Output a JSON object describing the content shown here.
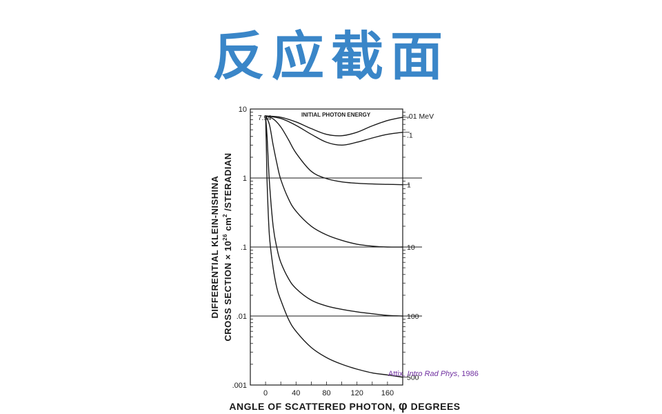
{
  "page": {
    "title": "反应截面",
    "citation": {
      "author": "Attix, ",
      "work": "Intro Rad Phys",
      "year": ", 1986"
    }
  },
  "chart_data": {
    "type": "line",
    "title": "",
    "inset_label": "INITIAL PHOTON ENERGY",
    "xlabel_prefix": "ANGLE OF SCATTERED PHOTON, ",
    "xlabel_symbol": "φ",
    "xlabel_suffix": " DEGREES",
    "ylabel_line1": "DIFFERENTIAL KLEIN-NISHINA",
    "ylabel_line2": "CROSS SECTION × 10",
    "ylabel_exp1": "26",
    "ylabel_unit": " cm",
    "ylabel_exp2": "2",
    "ylabel_tail": " /STERADIAN",
    "x_ticks": [
      "0",
      "40",
      "80",
      "120",
      "160"
    ],
    "y_ticks": [
      "10",
      "1",
      ".1",
      ".01",
      ".001"
    ],
    "xlim": [
      -20,
      180
    ],
    "ylim": [
      0.001,
      10
    ],
    "y_scale": "log",
    "grid": "horizontal at decades",
    "peak_label": "7.94",
    "series": [
      {
        "name": ".01 MeV",
        "x": [
          0,
          20,
          40,
          60,
          80,
          100,
          120,
          140,
          160,
          180
        ],
        "y": [
          7.94,
          7.6,
          6.5,
          5.2,
          4.3,
          4.1,
          4.6,
          5.7,
          6.8,
          7.6
        ]
      },
      {
        "name": ".1",
        "x": [
          0,
          20,
          40,
          60,
          80,
          100,
          120,
          140,
          160,
          180
        ],
        "y": [
          7.94,
          7.3,
          5.8,
          4.3,
          3.3,
          3.0,
          3.3,
          3.8,
          4.3,
          4.6
        ]
      },
      {
        "name": "1",
        "x": [
          0,
          10,
          20,
          30,
          40,
          60,
          80,
          100,
          120,
          140,
          160,
          180
        ],
        "y": [
          7.94,
          7.2,
          5.5,
          3.6,
          2.3,
          1.25,
          0.98,
          0.88,
          0.84,
          0.82,
          0.81,
          0.8
        ]
      },
      {
        "name": "10",
        "x": [
          0,
          5,
          10,
          15,
          20,
          30,
          40,
          60,
          80,
          100,
          120,
          140,
          160,
          180
        ],
        "y": [
          7.94,
          6.0,
          3.0,
          1.6,
          0.95,
          0.5,
          0.33,
          0.2,
          0.15,
          0.125,
          0.11,
          0.103,
          0.1,
          0.1
        ]
      },
      {
        "name": "100",
        "x": [
          0,
          2,
          5,
          10,
          15,
          20,
          30,
          40,
          60,
          80,
          100,
          120,
          140,
          160,
          180
        ],
        "y": [
          7.94,
          4.0,
          0.9,
          0.2,
          0.095,
          0.06,
          0.035,
          0.025,
          0.017,
          0.014,
          0.0125,
          0.0115,
          0.0108,
          0.0102,
          0.01
        ]
      },
      {
        "name": "500",
        "x": [
          0,
          1,
          2,
          5,
          10,
          15,
          20,
          30,
          40,
          60,
          80,
          100,
          120,
          140,
          160,
          180
        ],
        "y": [
          7.94,
          3.0,
          0.9,
          0.15,
          0.05,
          0.025,
          0.017,
          0.009,
          0.006,
          0.0035,
          0.0025,
          0.002,
          0.0017,
          0.0015,
          0.0014,
          0.0013
        ]
      }
    ]
  }
}
